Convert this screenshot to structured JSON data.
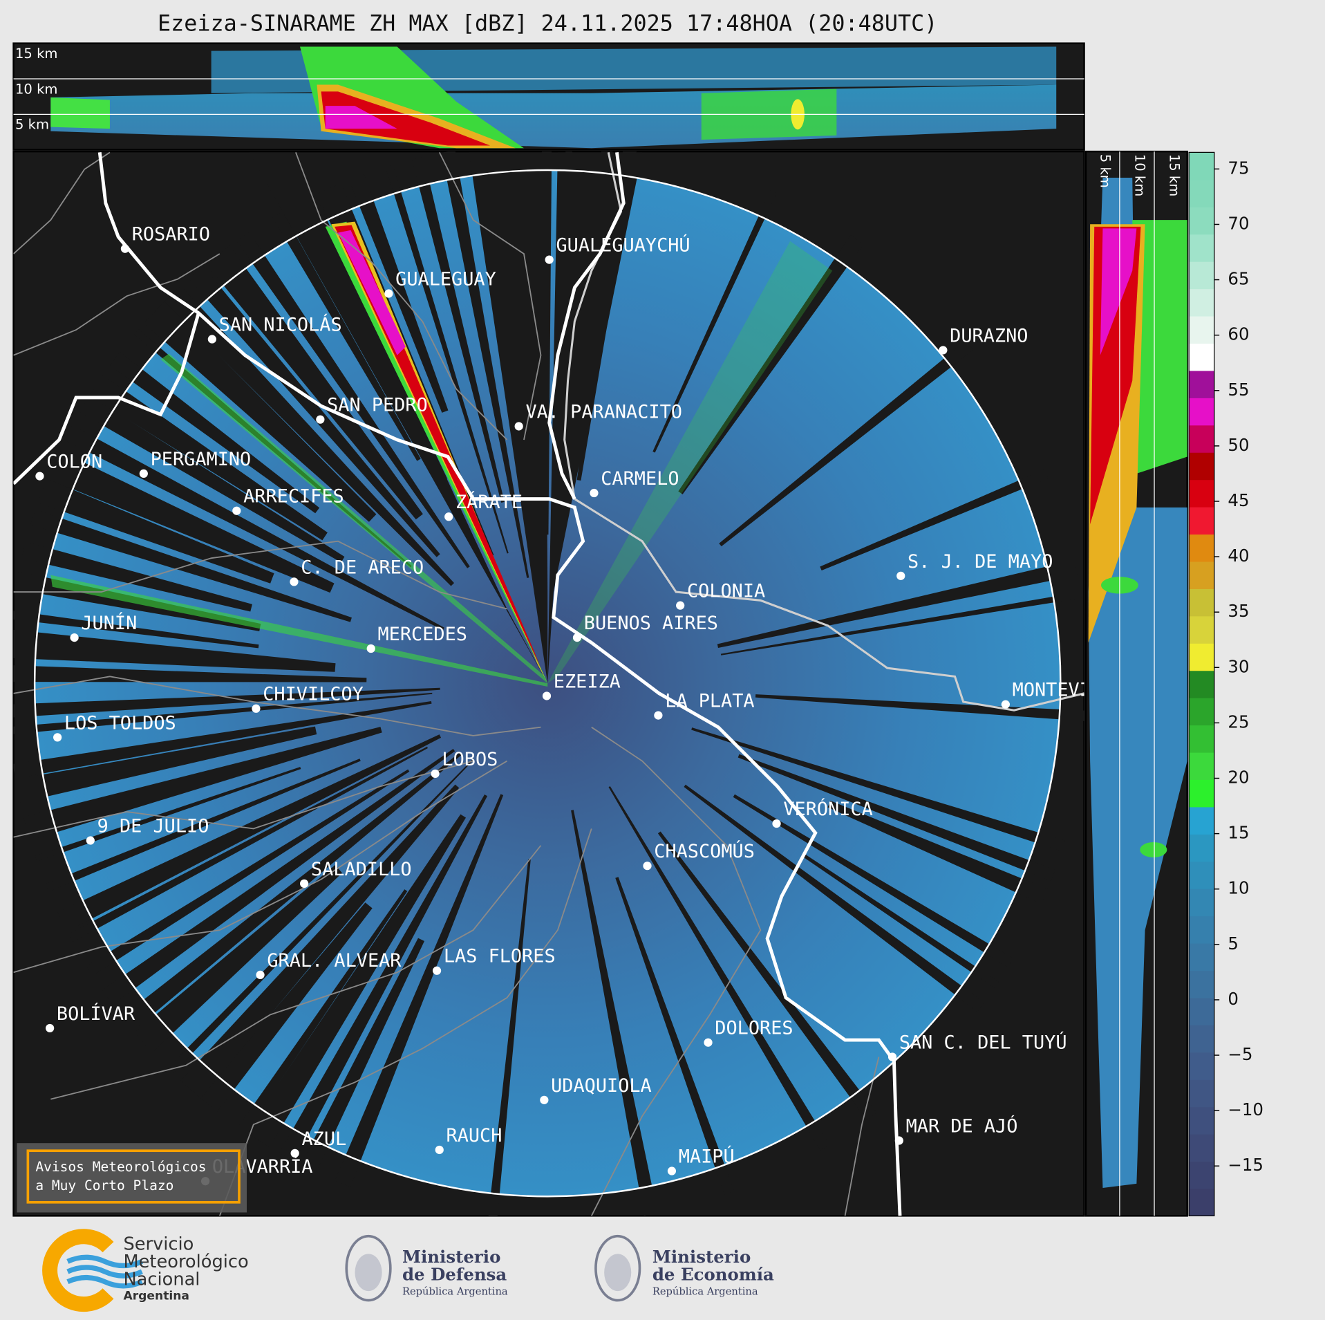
{
  "title": "Ezeiza-SINARAME ZH MAX [dBZ] 24.11.2025 17:48HOA (20:48UTC)",
  "top_altitude_labels": [
    "15 km",
    "10 km",
    "5 km"
  ],
  "side_altitude_labels": [
    "5 km",
    "10 km",
    "15 km"
  ],
  "cities": [
    {
      "label": "ROSARIO"
    },
    {
      "label": "GUALEGUAYCHÚ"
    },
    {
      "label": "GUALEGUAY"
    },
    {
      "label": "SAN NICOLÁS"
    },
    {
      "label": "DURAZNO"
    },
    {
      "label": "SAN PEDRO"
    },
    {
      "label": "VA. PARANACITO"
    },
    {
      "label": "COLON"
    },
    {
      "label": "PERGAMINO"
    },
    {
      "label": "CARMELO"
    },
    {
      "label": "ARRECIFES"
    },
    {
      "label": "ZÁRATE"
    },
    {
      "label": "S. J. DE MAYO"
    },
    {
      "label": "C. DE ARECO"
    },
    {
      "label": "COLONIA"
    },
    {
      "label": "BUENOS AIRES"
    },
    {
      "label": "JUNÍN"
    },
    {
      "label": "MERCEDES"
    },
    {
      "label": "MONTEVIDEO"
    },
    {
      "label": "EZEIZA"
    },
    {
      "label": "CHIVILCOY"
    },
    {
      "label": "LA PLATA"
    },
    {
      "label": "LOS TOLDOS"
    },
    {
      "label": "LOBOS"
    },
    {
      "label": "VERÓNICA"
    },
    {
      "label": "9 DE JULIO"
    },
    {
      "label": "CHASCOMÚS"
    },
    {
      "label": "SALADILLO"
    },
    {
      "label": "GRAL. ALVEAR"
    },
    {
      "label": "LAS FLORES"
    },
    {
      "label": "BOLÍVAR"
    },
    {
      "label": "DOLORES"
    },
    {
      "label": "SAN C. DEL TUYÚ"
    },
    {
      "label": "UDAQUIOLA"
    },
    {
      "label": "MAR DE AJÓ"
    },
    {
      "label": "RAUCH"
    },
    {
      "label": "AZUL"
    },
    {
      "label": "OLAVARRÍA"
    },
    {
      "label": "MAIPÚ"
    }
  ],
  "colorbar": {
    "lim": [
      -19.5,
      76.5
    ],
    "ticks": [
      75,
      70,
      65,
      60,
      55,
      50,
      45,
      40,
      35,
      30,
      25,
      20,
      15,
      10,
      5,
      0,
      {
        "value": -5,
        "label": "−5"
      },
      {
        "value": -10,
        "label": "−10"
      },
      {
        "value": -15,
        "label": "−15"
      }
    ],
    "colors": [
      "#3b3f6a",
      "#3c4470",
      "#3e4a77",
      "#3f507e",
      "#405684",
      "#405c8b",
      "#3f6391",
      "#3d6a98",
      "#3b729f",
      "#3979a6",
      "#3680ad",
      "#3387b3",
      "#2f8fba",
      "#2b97c1",
      "#27a3d2",
      "#2cf02c",
      "#3cd93c",
      "#33bf33",
      "#2ba52b",
      "#238a23",
      "#f0ec30",
      "#d8d33a",
      "#c8c035",
      "#d7a020",
      "#e08a10",
      "#f01830",
      "#d80010",
      "#b00000",
      "#c8005a",
      "#e610c8",
      "#a0109a",
      "#ffffff",
      "#e8f5ee",
      "#d0efe2",
      "#b8e9d6",
      "#a0e3ca",
      "#8cdcbe",
      "#84d9ba",
      "#80d8b8"
    ]
  },
  "notice": [
    "Avisos Meteorológicos",
    "a Muy Corto Plazo"
  ],
  "logos": {
    "smn": [
      "Servicio",
      "Meteorológico",
      "Nacional",
      "Argentina"
    ],
    "defensa": [
      "Ministerio",
      "de Defensa",
      "República Argentina"
    ],
    "economia": [
      "Ministerio",
      "de Economía",
      "República Argentina"
    ]
  }
}
